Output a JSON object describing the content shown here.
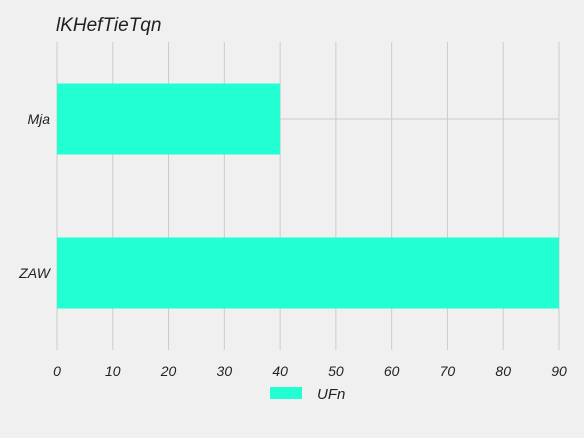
{
  "chart_data": {
    "type": "bar",
    "orientation": "horizontal",
    "title": "lKHefTieTqn",
    "xlabel": "",
    "ylabel": "",
    "categories": [
      "Mja",
      "ZAW"
    ],
    "series": [
      {
        "name": "UFn",
        "values": [
          40,
          90
        ],
        "color": "#22ffd2"
      }
    ],
    "xlim": [
      0,
      90
    ],
    "x_ticks": [
      0,
      10,
      20,
      30,
      40,
      50,
      60,
      70,
      80,
      90
    ],
    "grid": true,
    "legend_position": "bottom-center",
    "colors": {
      "background": "#f0f0f0",
      "grid": "#cbcbcb",
      "text": "#222222"
    }
  }
}
